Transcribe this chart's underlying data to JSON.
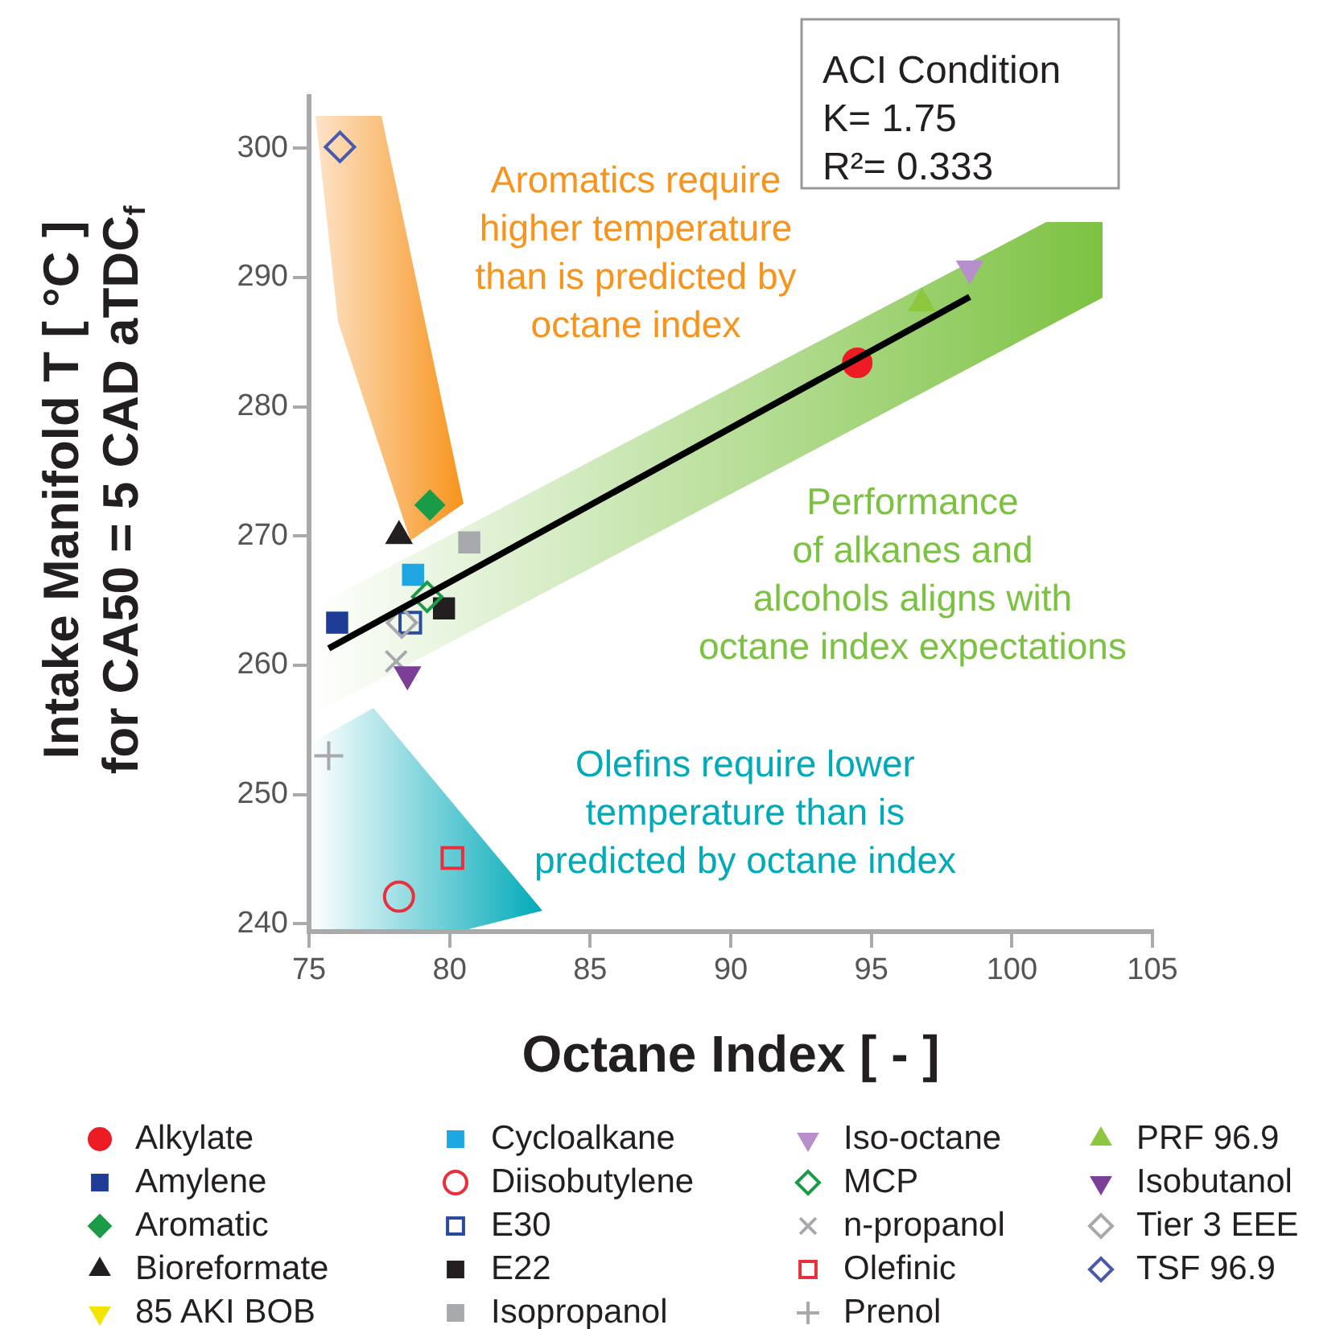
{
  "chart_data": {
    "type": "scatter",
    "xlabel": "Octane Index [ - ]",
    "ylabel": "Intake Manifold T [ °C ]\nfor CA50 = 5 CAD aTDC$_{f}$",
    "xlim": [
      75,
      105
    ],
    "xticks": [
      75,
      80,
      85,
      90,
      95,
      100,
      105
    ],
    "ylim": [
      239.4,
      304
    ],
    "yticks": [
      240,
      250,
      260,
      270,
      280,
      290,
      300
    ],
    "legend": "bottom",
    "grid": false,
    "annotations": [
      "ACI Condition\nK= 1.75\nR²= 0.333",
      "Aromatics require\nhigher temperature\nthan is predicted by\noctane index",
      "Performance\nof alkanes and\nalcohols aligns with\noctane index expectations",
      "Olefins require lower\ntemperature than is\npredicted by octane index"
    ],
    "series": [
      {
        "name": "Alkylate",
        "color": "#ed1c24",
        "marker": "circle",
        "x": [
          94.5
        ],
        "values": [
          283.4
        ]
      },
      {
        "name": "Amylene",
        "color": "#1f3c96",
        "marker": "square",
        "x": [
          76.0
        ],
        "values": [
          263.3
        ]
      },
      {
        "name": "Aromatic",
        "color": "#1a9b48",
        "marker": "diamond",
        "x": [
          79.3
        ],
        "values": [
          272.4
        ]
      },
      {
        "name": "Bioreformate",
        "color": "#231f20",
        "marker": "triangle",
        "x": [
          78.2
        ],
        "values": [
          270.0
        ]
      },
      {
        "name": "85 AKI BOB",
        "color": "#f2e500",
        "marker": "triangle_down",
        "x": [
          null
        ],
        "values": [
          null
        ]
      },
      {
        "name": "Cycloalkane",
        "color": "#1ea7e1",
        "marker": "square",
        "x": [
          78.7
        ],
        "values": [
          267.0
        ]
      },
      {
        "name": "Diisobutylene",
        "color": "#e8303c",
        "marker": "circle-open",
        "x": [
          78.2
        ],
        "values": [
          242.1
        ]
      },
      {
        "name": "E30",
        "color": "#2a4aa0",
        "marker": "square-open",
        "x": [
          78.6
        ],
        "values": [
          263.3
        ]
      },
      {
        "name": "E22",
        "color": "#231f20",
        "marker": "square",
        "x": [
          79.8
        ],
        "values": [
          264.4
        ]
      },
      {
        "name": "Isopropanol",
        "color": "#a7a9ac",
        "marker": "square",
        "x": [
          80.7
        ],
        "values": [
          269.5
        ]
      },
      {
        "name": "Iso-octane",
        "color": "#b68fcc",
        "marker": "triangle_down",
        "x": [
          98.5
        ],
        "values": [
          290.7
        ]
      },
      {
        "name": "MCP",
        "color": "#1a9b48",
        "marker": "diamond-open",
        "x": [
          79.2
        ],
        "values": [
          265.3
        ]
      },
      {
        "name": "n-propanol",
        "color": "#a7a9ac",
        "marker": "cross",
        "x": [
          78.1
        ],
        "values": [
          260.3
        ]
      },
      {
        "name": "Olefinic",
        "color": "#e8303c",
        "marker": "square-open",
        "x": [
          80.1
        ],
        "values": [
          245.1
        ]
      },
      {
        "name": "Prenol",
        "color": "#a7a9ac",
        "marker": "plus",
        "x": [
          75.7
        ],
        "values": [
          253.0
        ]
      },
      {
        "name": "PRF 96.9",
        "color": "#8dc63f",
        "marker": "triangle",
        "x": [
          96.8
        ],
        "values": [
          288.0
        ]
      },
      {
        "name": "Isobutanol",
        "color": "#7b3f98",
        "marker": "triangle_down",
        "x": [
          78.5
        ],
        "values": [
          259.3
        ]
      },
      {
        "name": "Tier 3 EEE",
        "color": "#a7a9ac",
        "marker": "diamond-open",
        "x": [
          78.3
        ],
        "values": [
          263.3
        ]
      },
      {
        "name": "TSF 96.9",
        "color": "#4a5aa8",
        "marker": "diamond-open",
        "x": [
          76.1
        ],
        "values": [
          300.1
        ]
      },
      {
        "type": "line",
        "color": "#000000",
        "marker": "none",
        "x": [
          75.7,
          98.5
        ],
        "values": [
          261.3,
          288.5
        ]
      }
    ]
  }
}
